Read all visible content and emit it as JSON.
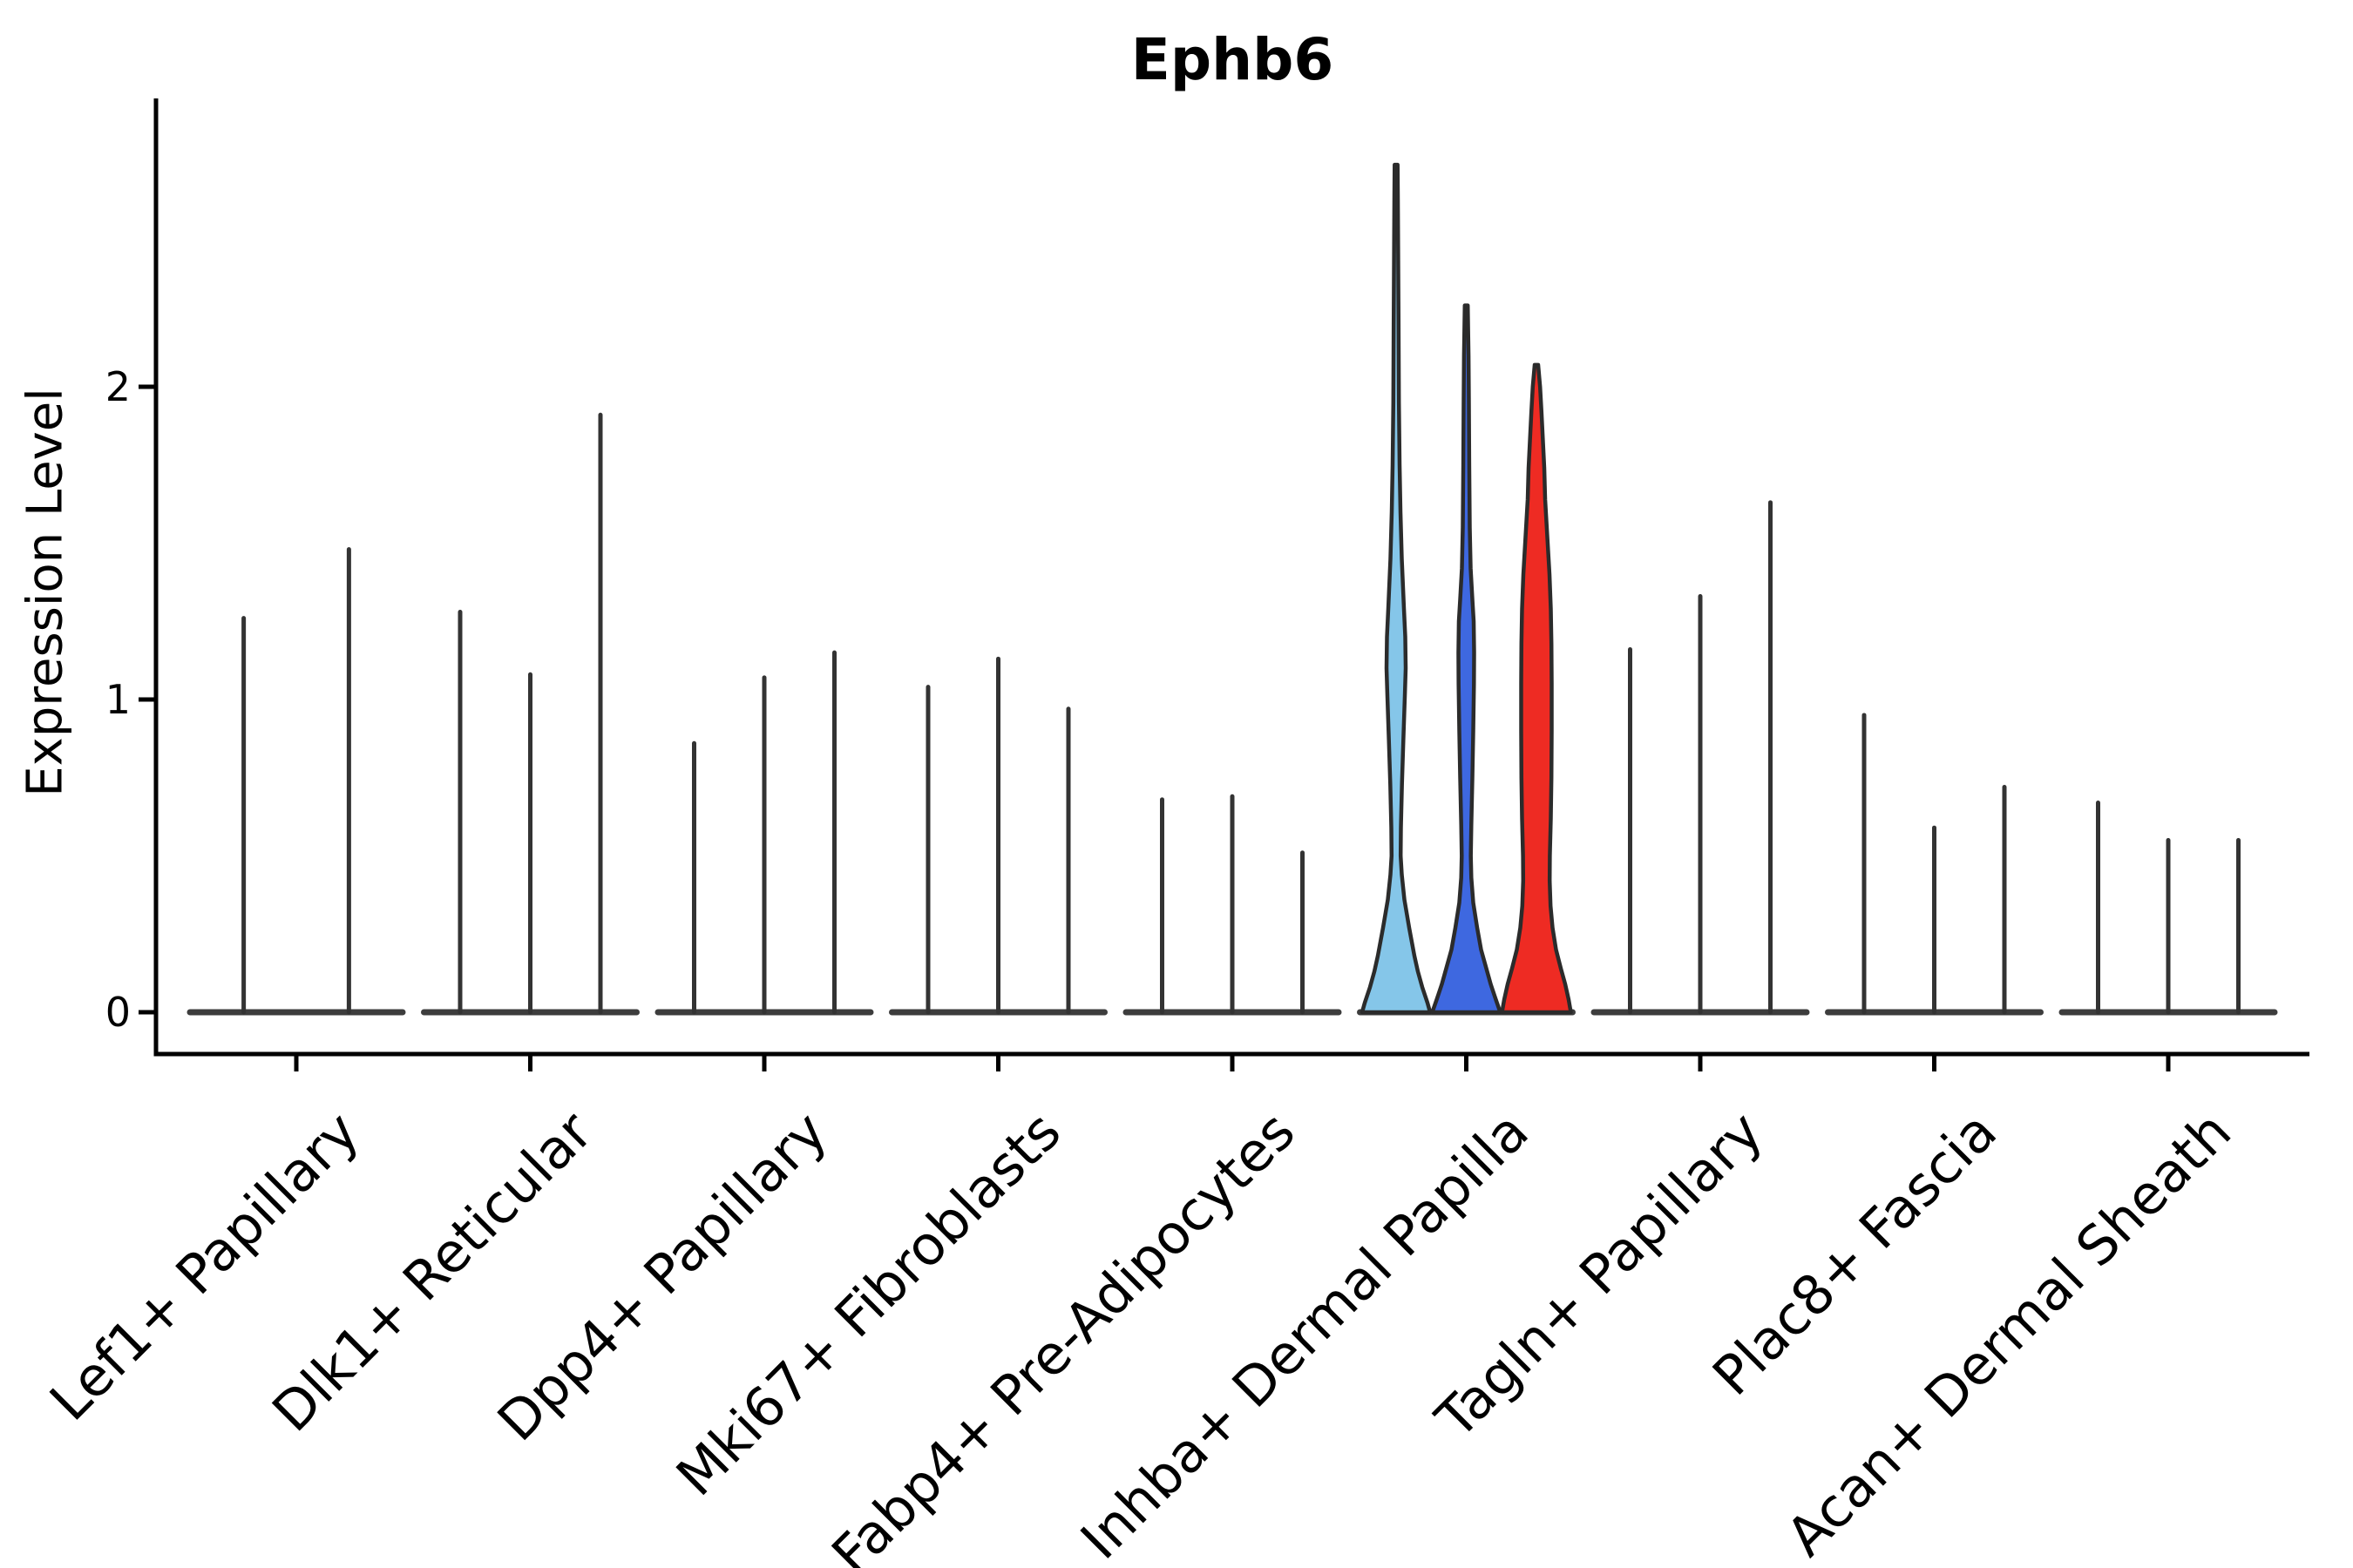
{
  "chart_data": {
    "type": "violin",
    "title": "Ephb6",
    "ylabel": "Expression Level",
    "xlabel": "",
    "yticks": [
      "0",
      "1",
      "2"
    ],
    "ytick_values": [
      0,
      1,
      2
    ],
    "ylim": [
      -0.13,
      2.92
    ],
    "grid": false,
    "legend": "none",
    "axis_color": "#000000",
    "spike_color": "#333333",
    "baseline_color": "#3d3d3d",
    "violin_outline_color": "#2b2b2b",
    "highlight_colors": [
      "#85C6E9",
      "#3E68E0",
      "#EE2B23"
    ],
    "categories": [
      {
        "label": "Lef1+ Papillary",
        "violins": [
          {
            "kind": "spike",
            "max": 1.26
          },
          {
            "kind": "spike",
            "max": 1.48
          }
        ]
      },
      {
        "label": "Dlk1+ Reticular",
        "violins": [
          {
            "kind": "spike",
            "max": 1.28
          },
          {
            "kind": "spike",
            "max": 1.08
          },
          {
            "kind": "spike",
            "max": 1.91
          }
        ]
      },
      {
        "label": "Dpp4+ Papillary",
        "violins": [
          {
            "kind": "spike",
            "max": 0.86
          },
          {
            "kind": "spike",
            "max": 1.07
          },
          {
            "kind": "spike",
            "max": 1.15
          }
        ]
      },
      {
        "label": "Mki67+ Fibroblasts",
        "violins": [
          {
            "kind": "spike",
            "max": 1.04
          },
          {
            "kind": "spike",
            "max": 1.13
          },
          {
            "kind": "spike",
            "max": 0.97
          }
        ]
      },
      {
        "label": "Fabp4+ Pre-Adipocytes",
        "violins": [
          {
            "kind": "spike",
            "max": 0.68
          },
          {
            "kind": "spike",
            "max": 0.69
          },
          {
            "kind": "spike",
            "max": 0.51
          }
        ]
      },
      {
        "label": "Inhba+ Dermal Papilla",
        "violins": [
          {
            "kind": "violin",
            "max": 2.71,
            "color": "#85C6E9",
            "profile": [
              [
                0,
                39
              ],
              [
                0.03,
                36
              ],
              [
                0.08,
                30
              ],
              [
                0.13,
                25
              ],
              [
                0.18,
                21
              ],
              [
                0.27,
                15
              ],
              [
                0.36,
                9.5
              ],
              [
                0.44,
                6.5
              ],
              [
                0.5,
                5.2
              ],
              [
                0.59,
                5.5
              ],
              [
                0.73,
                6.7
              ],
              [
                0.87,
                8.3
              ],
              [
                1.01,
                10
              ],
              [
                1.1,
                11
              ],
              [
                1.2,
                10.5
              ],
              [
                1.29,
                9
              ],
              [
                1.45,
                6.5
              ],
              [
                1.6,
                5
              ],
              [
                1.75,
                4
              ],
              [
                1.95,
                3.2
              ],
              [
                2.2,
                2.8
              ],
              [
                2.45,
                2.3
              ],
              [
                2.6,
                2
              ],
              [
                2.71,
                1.7
              ]
            ]
          },
          {
            "kind": "violin",
            "max": 2.26,
            "color": "#3E68E0",
            "profile": [
              [
                0,
                39
              ],
              [
                0.04,
                34
              ],
              [
                0.09,
                28
              ],
              [
                0.14,
                23
              ],
              [
                0.2,
                17
              ],
              [
                0.27,
                12.5
              ],
              [
                0.35,
                8
              ],
              [
                0.43,
                5.8
              ],
              [
                0.5,
                5.2
              ],
              [
                0.6,
                5.8
              ],
              [
                0.75,
                7
              ],
              [
                0.9,
                8
              ],
              [
                1.05,
                8.8
              ],
              [
                1.15,
                9
              ],
              [
                1.25,
                8.5
              ],
              [
                1.32,
                7
              ],
              [
                1.42,
                5
              ],
              [
                1.55,
                4
              ],
              [
                1.75,
                3.4
              ],
              [
                1.95,
                3
              ],
              [
                2.1,
                2.6
              ],
              [
                2.26,
                1.7
              ]
            ]
          },
          {
            "kind": "violin",
            "max": 2.07,
            "color": "#EE2B23",
            "profile": [
              [
                0,
                39.5
              ],
              [
                0.04,
                37
              ],
              [
                0.09,
                33
              ],
              [
                0.14,
                28
              ],
              [
                0.2,
                22.5
              ],
              [
                0.27,
                18.5
              ],
              [
                0.34,
                16.2
              ],
              [
                0.42,
                15.2
              ],
              [
                0.5,
                15.4
              ],
              [
                0.62,
                16.5
              ],
              [
                0.75,
                17.2
              ],
              [
                0.9,
                17.5
              ],
              [
                1.05,
                17.5
              ],
              [
                1.18,
                17.2
              ],
              [
                1.29,
                16.5
              ],
              [
                1.4,
                15
              ],
              [
                1.52,
                12.5
              ],
              [
                1.64,
                10
              ],
              [
                1.74,
                9
              ],
              [
                1.83,
                7.4
              ],
              [
                1.92,
                5.8
              ],
              [
                2.0,
                4.2
              ],
              [
                2.07,
                2
              ]
            ]
          }
        ]
      },
      {
        "label": "Tagln+ Papillary",
        "violins": [
          {
            "kind": "spike",
            "max": 1.16
          },
          {
            "kind": "spike",
            "max": 1.33
          },
          {
            "kind": "spike",
            "max": 1.63
          }
        ]
      },
      {
        "label": "Plac8+ Fascia",
        "violins": [
          {
            "kind": "spike",
            "max": 0.95
          },
          {
            "kind": "spike",
            "max": 0.59
          },
          {
            "kind": "spike",
            "max": 0.72
          }
        ]
      },
      {
        "label": "Acan+ Dermal Sheath",
        "violins": [
          {
            "kind": "spike",
            "max": 0.67
          },
          {
            "kind": "spike",
            "max": 0.55
          },
          {
            "kind": "spike",
            "max": 0.55
          }
        ]
      }
    ]
  }
}
